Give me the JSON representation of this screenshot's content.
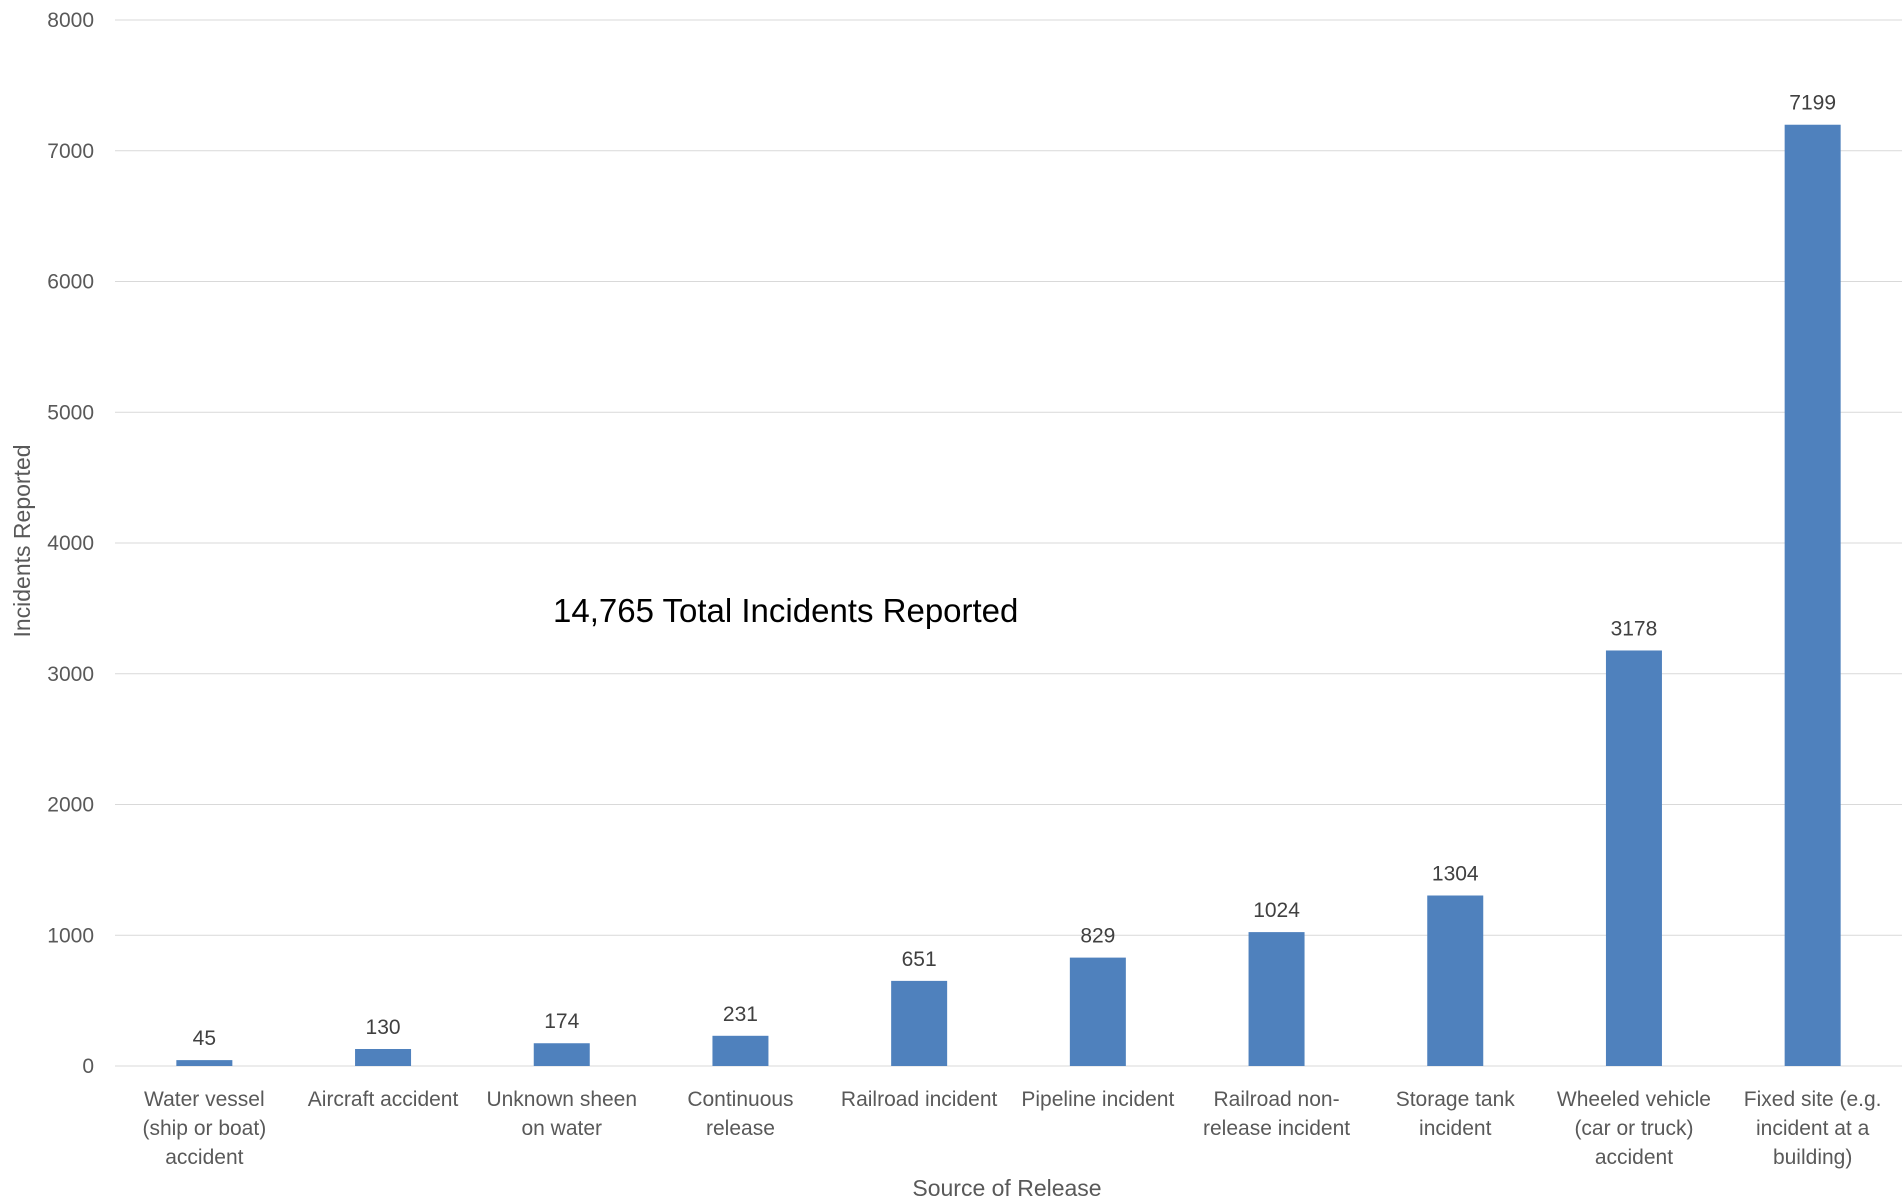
{
  "chart_data": {
    "type": "bar",
    "title": "",
    "xlabel": "Source of Release",
    "ylabel": "Incidents Reported",
    "ylim": [
      0,
      8000
    ],
    "yticks": [
      0,
      1000,
      2000,
      3000,
      4000,
      5000,
      6000,
      7000,
      8000
    ],
    "grid": true,
    "legend": "none",
    "categories": [
      [
        "Water vessel",
        "(ship or boat)",
        "accident"
      ],
      [
        "Aircraft accident"
      ],
      [
        "Unknown sheen",
        "on water"
      ],
      [
        "Continuous",
        "release"
      ],
      [
        "Railroad incident"
      ],
      [
        "Pipeline incident"
      ],
      [
        "Railroad non-",
        "release incident"
      ],
      [
        "Storage tank",
        "incident"
      ],
      [
        "Wheeled vehicle",
        "(car or truck)",
        "accident"
      ],
      [
        "Fixed site (e.g.",
        "incident at a",
        "building)"
      ]
    ],
    "values": [
      45,
      130,
      174,
      231,
      651,
      829,
      1024,
      1304,
      3178,
      7199
    ],
    "data_labels": [
      "45",
      "130",
      "174",
      "231",
      "651",
      "829",
      "1024",
      "1304",
      "3178",
      "7199"
    ],
    "annotation": "14,765 Total Incidents Reported",
    "colors": {
      "bar": "#4F81BD",
      "grid": "#D9D9D9",
      "tick_text": "#595959",
      "label_text": "#404040"
    }
  }
}
